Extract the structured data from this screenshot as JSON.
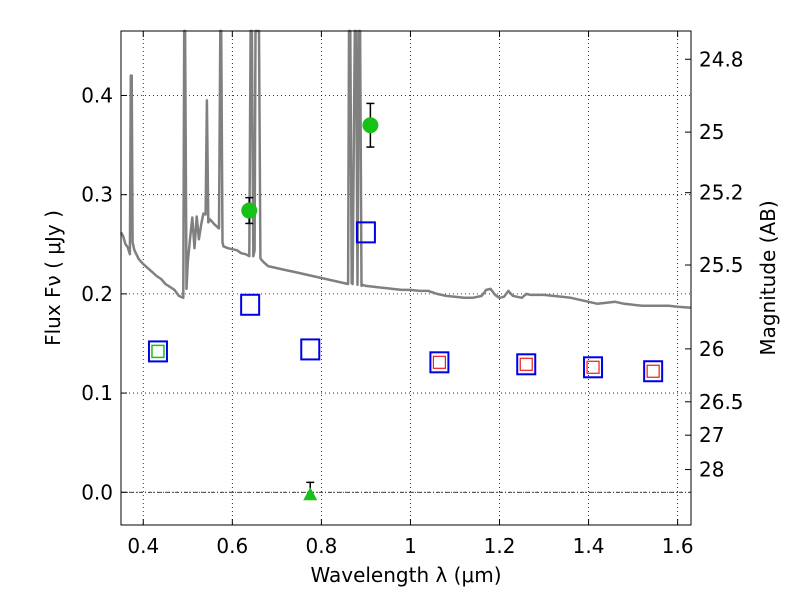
{
  "chart_data": {
    "type": "scatter",
    "xlabel": "Wavelength  λ (μm)",
    "ylabel": "Flux  Fν  ( μJy )",
    "y2label": "Magnitude (AB)",
    "xlim": [
      0.35,
      1.63
    ],
    "ylim": [
      -0.033,
      0.465
    ],
    "grid": true,
    "grid_style": "dotted",
    "x_ticks": [
      0.4,
      0.6,
      0.8,
      1.0,
      1.2,
      1.4,
      1.6
    ],
    "x_tick_labels": [
      "0.4",
      "0.6",
      "0.8",
      "1",
      "1.2",
      "1.4",
      "1.6"
    ],
    "y_ticks": [
      0.0,
      0.1,
      0.2,
      0.3,
      0.4
    ],
    "y_tick_labels": [
      "0.0",
      "0.1",
      "0.2",
      "0.3",
      "0.4"
    ],
    "right_axis_magnitude_ticks": [
      "24.8",
      "25",
      "25.2",
      "25.5",
      "26",
      "26.5",
      "27",
      "28"
    ],
    "colors": {
      "model": "#808080",
      "observed": "#17c117",
      "model_box": "#0000e6",
      "model_box_inner_nir": "#ee1c1c",
      "model_box_inner_optical": "#17c117",
      "errorbar": "#000000"
    },
    "model_spectrum": {
      "x": [
        0.35,
        0.355,
        0.36,
        0.365,
        0.37,
        0.372,
        0.374,
        0.376,
        0.38,
        0.39,
        0.4,
        0.41,
        0.42,
        0.43,
        0.44,
        0.45,
        0.46,
        0.47,
        0.48,
        0.49,
        0.492,
        0.494,
        0.497,
        0.5,
        0.505,
        0.51,
        0.515,
        0.52,
        0.525,
        0.53,
        0.535,
        0.54,
        0.543,
        0.546,
        0.55,
        0.56,
        0.57,
        0.573,
        0.575,
        0.578,
        0.58,
        0.59,
        0.6,
        0.61,
        0.62,
        0.63,
        0.638,
        0.641,
        0.644,
        0.647,
        0.65,
        0.652,
        0.655,
        0.657,
        0.66,
        0.663,
        0.666,
        0.67,
        0.68,
        0.7,
        0.72,
        0.74,
        0.76,
        0.78,
        0.8,
        0.82,
        0.84,
        0.86,
        0.862,
        0.865,
        0.868,
        0.87,
        0.875,
        0.878,
        0.881,
        0.884,
        0.887,
        0.89,
        0.893,
        0.9,
        0.92,
        0.94,
        0.96,
        0.98,
        1.0,
        1.02,
        1.04,
        1.06,
        1.08,
        1.1,
        1.12,
        1.14,
        1.16,
        1.17,
        1.18,
        1.19,
        1.2,
        1.21,
        1.22,
        1.23,
        1.24,
        1.25,
        1.26,
        1.27,
        1.28,
        1.3,
        1.32,
        1.34,
        1.36,
        1.38,
        1.4,
        1.42,
        1.44,
        1.46,
        1.48,
        1.5,
        1.52,
        1.54,
        1.56,
        1.58,
        1.6,
        1.63
      ],
      "y": [
        0.262,
        0.258,
        0.25,
        0.247,
        0.24,
        0.42,
        0.42,
        0.252,
        0.244,
        0.235,
        0.23,
        0.226,
        0.222,
        0.218,
        0.215,
        0.21,
        0.207,
        0.204,
        0.198,
        0.196,
        0.47,
        0.47,
        0.205,
        0.232,
        0.255,
        0.277,
        0.246,
        0.278,
        0.255,
        0.27,
        0.281,
        0.28,
        0.395,
        0.272,
        0.275,
        0.27,
        0.266,
        0.47,
        0.47,
        0.252,
        0.248,
        0.246,
        0.245,
        0.244,
        0.241,
        0.24,
        0.238,
        0.47,
        0.47,
        0.238,
        0.244,
        0.47,
        0.47,
        0.47,
        0.47,
        0.236,
        0.234,
        0.232,
        0.228,
        0.226,
        0.224,
        0.222,
        0.22,
        0.218,
        0.216,
        0.214,
        0.212,
        0.21,
        0.47,
        0.47,
        0.211,
        0.21,
        0.47,
        0.47,
        0.209,
        0.47,
        0.47,
        0.208,
        0.209,
        0.208,
        0.207,
        0.206,
        0.205,
        0.204,
        0.204,
        0.203,
        0.203,
        0.2,
        0.198,
        0.197,
        0.196,
        0.196,
        0.198,
        0.204,
        0.205,
        0.199,
        0.196,
        0.197,
        0.203,
        0.198,
        0.197,
        0.196,
        0.2,
        0.199,
        0.199,
        0.199,
        0.198,
        0.197,
        0.196,
        0.194,
        0.192,
        0.19,
        0.191,
        0.192,
        0.19,
        0.189,
        0.188,
        0.188,
        0.188,
        0.188,
        0.187,
        0.186
      ]
    },
    "observed_detections": [
      {
        "x": 0.638,
        "y": 0.284,
        "yerr": 0.013
      },
      {
        "x": 0.91,
        "y": 0.37,
        "yerr": 0.022
      }
    ],
    "observed_upper_limits": [
      {
        "x": 0.775,
        "y": -0.002,
        "yerr_up": 0.012
      }
    ],
    "model_photometry_optical": [
      {
        "x": 0.433,
        "y": 0.142,
        "inner": "observed"
      },
      {
        "x": 0.64,
        "y": 0.189,
        "inner": "none"
      },
      {
        "x": 0.775,
        "y": 0.144,
        "inner": "none"
      },
      {
        "x": 0.9,
        "y": 0.262,
        "inner": "none"
      }
    ],
    "model_photometry_nir": [
      {
        "x": 1.065,
        "y": 0.131
      },
      {
        "x": 1.26,
        "y": 0.129
      },
      {
        "x": 1.41,
        "y": 0.126
      },
      {
        "x": 1.545,
        "y": 0.122
      }
    ]
  }
}
